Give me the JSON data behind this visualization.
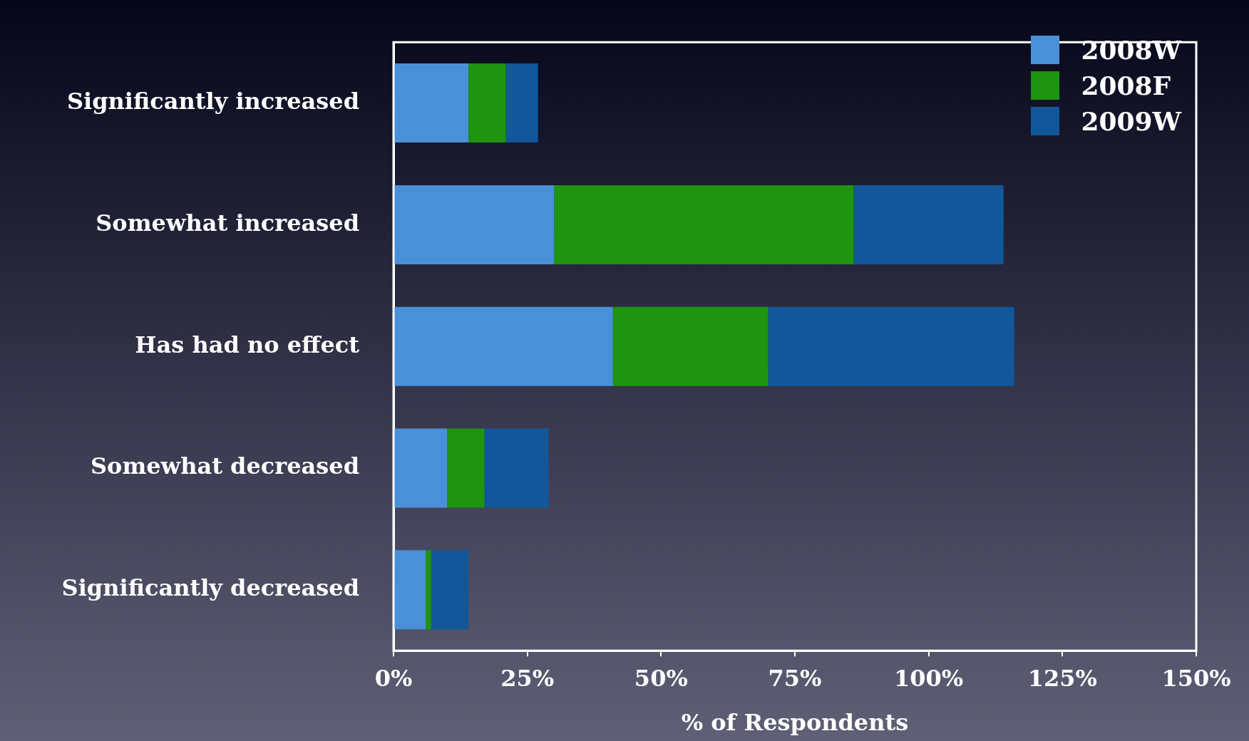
{
  "chart_data": {
    "type": "bar",
    "orientation": "horizontal",
    "stacked": true,
    "xlabel": "% of Respondents",
    "categories": [
      "Significantly increased",
      "Somewhat increased",
      "Has had no effect",
      "Somewhat decreased",
      "Significantly decreased"
    ],
    "series": [
      {
        "name": "2008W",
        "color": "#4a90d9",
        "values": [
          14,
          30,
          41,
          10,
          6
        ]
      },
      {
        "name": "2008F",
        "color": "#1e9410",
        "values": [
          7,
          56,
          29,
          7,
          1
        ]
      },
      {
        "name": "2009W",
        "color": "#12579a",
        "values": [
          6,
          28,
          46,
          12,
          7
        ]
      }
    ],
    "xlim": [
      0,
      150
    ],
    "xticks": [
      {
        "value": 0,
        "label": "0%"
      },
      {
        "value": 25,
        "label": "25%"
      },
      {
        "value": 50,
        "label": "50%"
      },
      {
        "value": 75,
        "label": "75%"
      },
      {
        "value": 100,
        "label": "100%"
      },
      {
        "value": 125,
        "label": "125%"
      },
      {
        "value": 150,
        "label": "150%"
      }
    ],
    "grid": false,
    "legend": "top right"
  }
}
